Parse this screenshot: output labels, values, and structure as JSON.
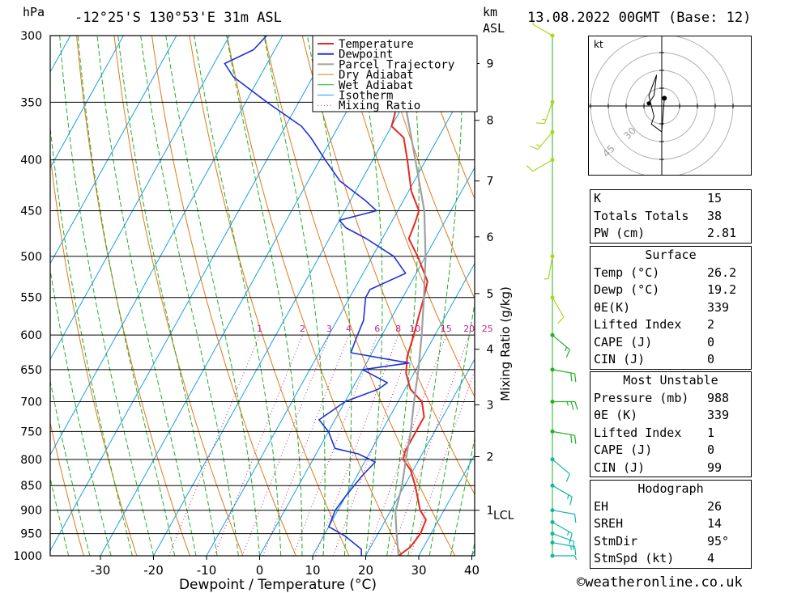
{
  "header": {
    "hpa": "hPa",
    "location": "-12°25'S 130°53'E 31m ASL",
    "km": "km",
    "asl": "ASL",
    "datetime": "13.08.2022 00GMT (Base: 12)"
  },
  "chart_data": {
    "type": "line",
    "title": "-12°25'S 130°53'E 31m ASL",
    "xlabel": "Dewpoint / Temperature (°C)",
    "ylabel": "hPa",
    "xlim": [
      -40,
      40
    ],
    "ylim": [
      1000,
      300
    ],
    "x_ticks": [
      -30,
      -20,
      -10,
      0,
      10,
      20,
      30,
      40
    ],
    "p_ticks": [
      300,
      350,
      400,
      450,
      500,
      550,
      600,
      650,
      700,
      750,
      800,
      850,
      900,
      950,
      1000
    ],
    "km_ticks": [
      {
        "label": "1",
        "p": 900
      },
      {
        "label": "2",
        "p": 795
      },
      {
        "label": "3",
        "p": 705
      },
      {
        "label": "4",
        "p": 620
      },
      {
        "label": "5",
        "p": 545
      },
      {
        "label": "6",
        "p": 478
      },
      {
        "label": "7",
        "p": 420
      },
      {
        "label": "8",
        "p": 365
      },
      {
        "label": "9",
        "p": 320
      }
    ],
    "lcl_label": "LCL",
    "lcl_p": 903,
    "mixing_ratio_label": "Mixing Ratio (g/kg)",
    "mixing_ratios": [
      "1",
      "2",
      "3",
      "4",
      "6",
      "8",
      "10",
      "15",
      "20",
      "25"
    ],
    "legend": [
      "Temperature",
      "Dewpoint",
      "Parcel Trajectory",
      "Dry Adiabat",
      "Wet Adiabat",
      "Isotherm",
      "Mixing Ratio"
    ],
    "legend_position": "top-left",
    "series": [
      {
        "name": "Temperature",
        "points": [
          [
            1000,
            26.2
          ],
          [
            980,
            27.5
          ],
          [
            950,
            28.0
          ],
          [
            920,
            27.6
          ],
          [
            900,
            25.5
          ],
          [
            850,
            22.0
          ],
          [
            820,
            19.5
          ],
          [
            800,
            17.0
          ],
          [
            785,
            16.5
          ],
          [
            760,
            16.5
          ],
          [
            725,
            16.5
          ],
          [
            700,
            14.5
          ],
          [
            680,
            11.0
          ],
          [
            655,
            8.5
          ],
          [
            630,
            7.0
          ],
          [
            600,
            6.0
          ],
          [
            575,
            5.0
          ],
          [
            550,
            4.0
          ],
          [
            530,
            3.0
          ],
          [
            500,
            -1.5
          ],
          [
            480,
            -5.0
          ],
          [
            462,
            -5.5
          ],
          [
            450,
            -6.0
          ],
          [
            430,
            -9.5
          ],
          [
            400,
            -13.5
          ],
          [
            380,
            -16.5
          ],
          [
            370,
            -20.0
          ],
          [
            362,
            -20.5
          ],
          [
            358,
            -20.8
          ]
        ]
      },
      {
        "name": "Dewpoint",
        "points": [
          [
            1000,
            19.2
          ],
          [
            985,
            18.5
          ],
          [
            955,
            14.0
          ],
          [
            935,
            10.0
          ],
          [
            900,
            9.5
          ],
          [
            870,
            10.0
          ],
          [
            830,
            11.0
          ],
          [
            805,
            12.0
          ],
          [
            790,
            8.0
          ],
          [
            780,
            3.0
          ],
          [
            750,
            0.0
          ],
          [
            730,
            -3.0
          ],
          [
            710,
            -1.0
          ],
          [
            700,
            0.0
          ],
          [
            680,
            5.0
          ],
          [
            670,
            6.0
          ],
          [
            660,
            3.0
          ],
          [
            650,
            0.0
          ],
          [
            640,
            8.0
          ],
          [
            625,
            -4.0
          ],
          [
            605,
            -4.5
          ],
          [
            580,
            -5.0
          ],
          [
            550,
            -7.0
          ],
          [
            540,
            -7.0
          ],
          [
            520,
            -2.0
          ],
          [
            500,
            -6.0
          ],
          [
            480,
            -13.0
          ],
          [
            468,
            -18.0
          ],
          [
            460,
            -20.0
          ],
          [
            455,
            -17.0
          ],
          [
            450,
            -14.0
          ],
          [
            440,
            -17.0
          ],
          [
            420,
            -24.0
          ],
          [
            400,
            -29.0
          ],
          [
            380,
            -34.0
          ],
          [
            370,
            -37.0
          ],
          [
            350,
            -46.0
          ],
          [
            330,
            -55.0
          ],
          [
            320,
            -58.0
          ],
          [
            310,
            -54.0
          ],
          [
            300,
            -53.0
          ]
        ]
      },
      {
        "name": "Parcel Trajectory",
        "points": [
          [
            1000,
            26.2
          ],
          [
            950,
            23.5
          ],
          [
            903,
            21.0
          ],
          [
            850,
            19.5
          ],
          [
            800,
            17.5
          ],
          [
            750,
            15.5
          ],
          [
            700,
            13.0
          ],
          [
            650,
            10.5
          ],
          [
            600,
            7.5
          ],
          [
            550,
            4.0
          ],
          [
            500,
            0.0
          ],
          [
            450,
            -5.0
          ],
          [
            400,
            -12.0
          ],
          [
            350,
            -20.0
          ],
          [
            300,
            -29.0
          ]
        ]
      }
    ],
    "wind_barbs": [
      {
        "p": 1000,
        "dir": 90,
        "spd": 5
      },
      {
        "p": 970,
        "dir": 100,
        "spd": 15
      },
      {
        "p": 950,
        "dir": 110,
        "spd": 15
      },
      {
        "p": 925,
        "dir": 120,
        "spd": 15
      },
      {
        "p": 900,
        "dir": 100,
        "spd": 10
      },
      {
        "p": 850,
        "dir": 120,
        "spd": 15
      },
      {
        "p": 800,
        "dir": 130,
        "spd": 10
      },
      {
        "p": 750,
        "dir": 100,
        "spd": 20
      },
      {
        "p": 700,
        "dir": 90,
        "spd": 25
      },
      {
        "p": 650,
        "dir": 100,
        "spd": 20
      },
      {
        "p": 600,
        "dir": 130,
        "spd": 15
      },
      {
        "p": 550,
        "dir": 150,
        "spd": 10
      },
      {
        "p": 500,
        "dir": 190,
        "spd": 5
      },
      {
        "p": 400,
        "dir": 240,
        "spd": 10
      },
      {
        "p": 375,
        "dir": 220,
        "spd": 15
      },
      {
        "p": 350,
        "dir": 200,
        "spd": 15
      },
      {
        "p": 300,
        "dir": 300,
        "spd": 5
      }
    ],
    "hodograph": {
      "unit": "kt",
      "ring_labels": [
        "30",
        "45"
      ],
      "trace": [
        [
          -5,
          -1
        ],
        [
          -3,
          -4
        ],
        [
          -2,
          -12
        ],
        [
          -5,
          -4
        ],
        [
          -3,
          4
        ],
        [
          -4,
          7
        ],
        [
          0,
          10
        ],
        [
          1,
          -3
        ]
      ]
    },
    "colors": {
      "temperature": "#e8281e",
      "dewpoint": "#1c32d8",
      "parcel": "#a0a0a0",
      "dry_adiabat": "#e07a1a",
      "wet_adiabat": "#22b022",
      "isotherm": "#1aa0e0",
      "mixing_ratio": "#c8248c",
      "wind_barb_upper": "#a8d81a",
      "wind_barb_mid": "#22b022",
      "wind_barb_low": "#16b4a8"
    }
  },
  "indices": {
    "k_label": "K",
    "k": "15",
    "tt_label": "Totals Totals",
    "tt": "38",
    "pw_label": "PW (cm)",
    "pw": "2.81"
  },
  "surface": {
    "title": "Surface",
    "temp_label": "Temp (°C)",
    "temp": "26.2",
    "dewp_label": "Dewp (°C)",
    "dewp": "19.2",
    "thetae_label": "θE(K)",
    "thetae": "339",
    "li_label": "Lifted Index",
    "li": "2",
    "cape_label": "CAPE (J)",
    "cape": "0",
    "cin_label": "CIN (J)",
    "cin": "0"
  },
  "most_unstable": {
    "title": "Most Unstable",
    "pressure_label": "Pressure (mb)",
    "pressure": "988",
    "thetae_label": "θE (K)",
    "thetae": "339",
    "li_label": "Lifted Index",
    "li": "1",
    "cape_label": "CAPE (J)",
    "cape": "0",
    "cin_label": "CIN (J)",
    "cin": "99"
  },
  "hodograph_table": {
    "title": "Hodograph",
    "eh_label": "EH",
    "eh": "26",
    "sreh_label": "SREH",
    "sreh": "14",
    "stmdir_label": "StmDir",
    "stmdir": "95°",
    "stmspd_label": "StmSpd (kt)",
    "stmspd": "4"
  },
  "credit": "©weatheronline.co.uk"
}
